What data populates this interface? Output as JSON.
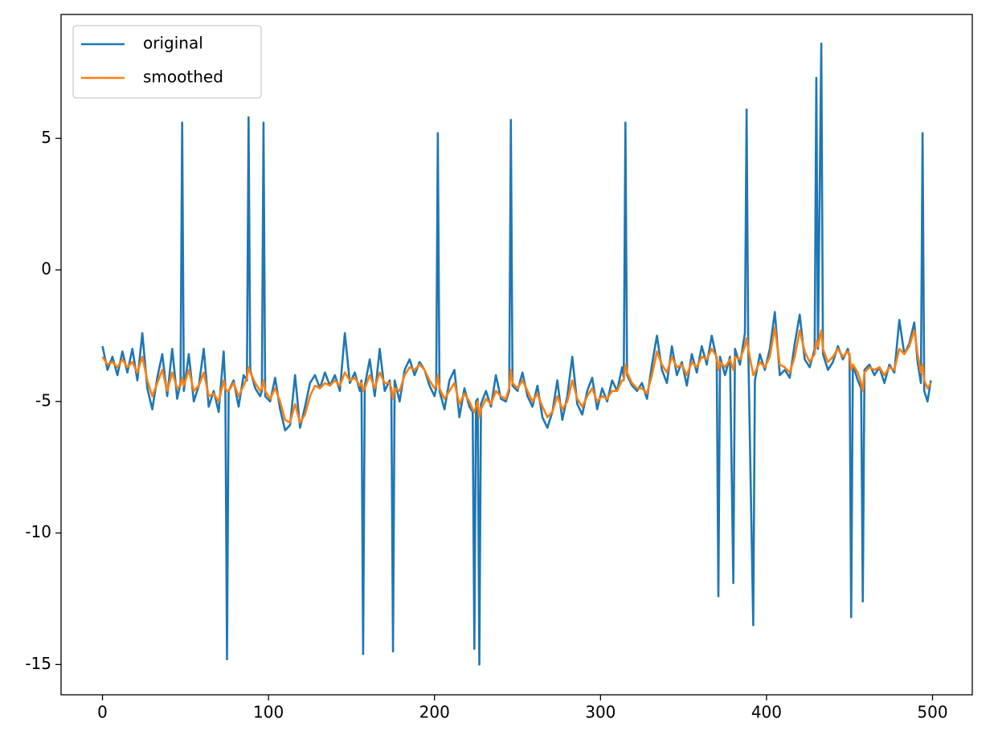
{
  "chart_data": {
    "type": "line",
    "x": [
      0,
      3,
      6,
      9,
      12,
      15,
      18,
      21,
      24,
      27,
      30,
      33,
      36,
      39,
      42,
      45,
      47,
      48,
      49,
      52,
      55,
      58,
      61,
      64,
      67,
      70,
      73,
      74,
      75,
      76,
      79,
      82,
      85,
      87,
      88,
      89,
      92,
      95,
      96,
      97,
      98,
      101,
      104,
      107,
      110,
      113,
      116,
      119,
      122,
      125,
      128,
      131,
      134,
      137,
      140,
      143,
      146,
      149,
      152,
      155,
      156,
      157,
      158,
      161,
      164,
      167,
      170,
      173,
      174,
      175,
      176,
      179,
      182,
      185,
      188,
      191,
      194,
      197,
      200,
      201,
      202,
      203,
      206,
      209,
      212,
      215,
      218,
      221,
      223,
      224,
      225,
      226,
      227,
      228,
      231,
      234,
      237,
      240,
      243,
      245,
      246,
      247,
      250,
      253,
      256,
      259,
      262,
      265,
      268,
      271,
      274,
      277,
      280,
      283,
      286,
      289,
      292,
      295,
      298,
      301,
      304,
      307,
      310,
      313,
      314,
      315,
      316,
      319,
      322,
      325,
      328,
      331,
      334,
      337,
      340,
      343,
      346,
      349,
      352,
      355,
      358,
      361,
      364,
      367,
      370,
      371,
      372,
      375,
      378,
      380,
      381,
      384,
      387,
      388,
      389,
      392,
      393,
      396,
      399,
      402,
      405,
      408,
      411,
      414,
      417,
      420,
      423,
      426,
      429,
      430,
      431,
      433,
      434,
      437,
      440,
      443,
      446,
      449,
      450,
      451,
      452,
      455,
      457,
      458,
      459,
      462,
      465,
      468,
      471,
      474,
      477,
      480,
      483,
      486,
      489,
      491,
      493,
      494,
      495,
      497,
      499
    ],
    "series": [
      {
        "name": "original",
        "color": "#1f77b4",
        "values": [
          -2.9,
          -3.8,
          -3.3,
          -4.0,
          -3.1,
          -3.9,
          -3.0,
          -4.2,
          -2.4,
          -4.5,
          -5.3,
          -4.1,
          -3.2,
          -4.8,
          -3.0,
          -4.9,
          -4.3,
          5.6,
          -4.6,
          -3.2,
          -5.0,
          -4.4,
          -3.0,
          -5.2,
          -4.6,
          -5.4,
          -3.1,
          -4.5,
          -14.8,
          -4.6,
          -4.2,
          -5.2,
          -4.0,
          -4.2,
          5.8,
          -3.8,
          -4.5,
          -4.8,
          -4.6,
          5.6,
          -4.8,
          -5.0,
          -4.1,
          -5.3,
          -6.1,
          -5.9,
          -4.0,
          -6.0,
          -5.2,
          -4.3,
          -4.0,
          -4.5,
          -3.9,
          -4.4,
          -4.0,
          -4.6,
          -2.4,
          -4.3,
          -3.9,
          -4.6,
          -4.2,
          -14.6,
          -4.4,
          -3.4,
          -4.8,
          -3.0,
          -4.6,
          -4.2,
          -4.7,
          -14.5,
          -4.2,
          -5.0,
          -3.8,
          -3.4,
          -4.0,
          -3.5,
          -3.8,
          -4.4,
          -4.8,
          -4.5,
          5.2,
          -4.6,
          -5.3,
          -4.2,
          -3.8,
          -5.6,
          -4.5,
          -5.2,
          -5.4,
          -14.4,
          -5.0,
          -4.9,
          -15.0,
          -5.1,
          -4.6,
          -5.2,
          -4.0,
          -4.9,
          -5.0,
          -4.6,
          5.7,
          -4.4,
          -4.6,
          -3.9,
          -4.8,
          -5.2,
          -4.4,
          -5.6,
          -6.0,
          -5.4,
          -4.2,
          -5.7,
          -4.8,
          -3.3,
          -5.1,
          -5.5,
          -4.6,
          -4.1,
          -5.3,
          -4.5,
          -5.0,
          -4.2,
          -4.6,
          -3.7,
          -4.1,
          5.6,
          -4.0,
          -4.4,
          -4.6,
          -4.3,
          -4.9,
          -3.6,
          -2.5,
          -3.8,
          -4.3,
          -2.9,
          -4.0,
          -3.5,
          -4.4,
          -3.2,
          -3.9,
          -2.9,
          -3.6,
          -2.5,
          -3.4,
          -12.4,
          -3.3,
          -4.0,
          -3.3,
          -11.9,
          -3.0,
          -3.6,
          -2.4,
          6.1,
          -3.0,
          -13.5,
          -4.2,
          -3.2,
          -3.8,
          -3.0,
          -1.6,
          -4.0,
          -3.8,
          -4.1,
          -2.8,
          -1.7,
          -3.4,
          -3.7,
          -3.0,
          7.3,
          -3.0,
          8.6,
          -3.2,
          -3.8,
          -3.5,
          -2.9,
          -3.4,
          -3.0,
          -3.3,
          -13.2,
          -3.6,
          -4.2,
          -4.5,
          -12.6,
          -3.8,
          -3.6,
          -4.0,
          -3.7,
          -4.3,
          -3.6,
          -3.9,
          -1.9,
          -3.2,
          -2.8,
          -2.0,
          -3.5,
          -4.3,
          5.2,
          -4.6,
          -5.0,
          -4.2
        ]
      },
      {
        "name": "smoothed",
        "color": "#ff7f0e",
        "values": [
          -3.3,
          -3.6,
          -3.5,
          -3.7,
          -3.4,
          -3.7,
          -3.5,
          -3.9,
          -3.3,
          -4.2,
          -4.8,
          -4.3,
          -3.8,
          -4.6,
          -3.9,
          -4.5,
          -4.4,
          -4.1,
          -4.4,
          -3.8,
          -4.6,
          -4.4,
          -3.9,
          -4.8,
          -4.7,
          -5.0,
          -4.2,
          -4.5,
          -4.6,
          -4.6,
          -4.3,
          -4.8,
          -4.4,
          -4.1,
          -3.7,
          -3.9,
          -4.3,
          -4.6,
          -4.5,
          -4.2,
          -4.6,
          -4.9,
          -4.5,
          -5.0,
          -5.7,
          -5.8,
          -5.1,
          -5.8,
          -5.5,
          -4.8,
          -4.4,
          -4.5,
          -4.3,
          -4.4,
          -4.2,
          -4.4,
          -3.9,
          -4.2,
          -4.1,
          -4.4,
          -4.3,
          -4.6,
          -4.5,
          -4.0,
          -4.5,
          -3.9,
          -4.3,
          -4.3,
          -4.5,
          -4.9,
          -4.5,
          -4.6,
          -4.0,
          -3.7,
          -3.8,
          -3.6,
          -3.8,
          -4.2,
          -4.5,
          -4.4,
          -4.0,
          -4.5,
          -4.9,
          -4.6,
          -4.3,
          -5.1,
          -4.7,
          -5.0,
          -5.3,
          -5.4,
          -5.2,
          -5.0,
          -5.6,
          -5.3,
          -4.9,
          -5.1,
          -4.6,
          -4.8,
          -4.9,
          -4.5,
          -3.8,
          -4.3,
          -4.5,
          -4.2,
          -4.6,
          -5.0,
          -4.7,
          -5.2,
          -5.6,
          -5.4,
          -4.8,
          -5.3,
          -5.0,
          -4.2,
          -4.9,
          -5.2,
          -4.8,
          -4.5,
          -5.0,
          -4.8,
          -4.9,
          -4.6,
          -4.6,
          -4.2,
          -4.2,
          -3.6,
          -3.9,
          -4.3,
          -4.5,
          -4.5,
          -4.7,
          -4.0,
          -3.1,
          -3.6,
          -3.9,
          -3.3,
          -3.7,
          -3.6,
          -4.0,
          -3.5,
          -3.7,
          -3.3,
          -3.4,
          -3.0,
          -3.3,
          -3.8,
          -3.5,
          -3.7,
          -3.4,
          -3.8,
          -3.3,
          -3.4,
          -2.9,
          -2.6,
          -3.0,
          -4.0,
          -3.9,
          -3.5,
          -3.7,
          -3.3,
          -2.2,
          -3.6,
          -3.7,
          -3.9,
          -3.3,
          -2.3,
          -3.1,
          -3.5,
          -3.2,
          -2.7,
          -2.9,
          -2.3,
          -3.0,
          -3.5,
          -3.3,
          -3.0,
          -3.3,
          -3.1,
          -3.2,
          -3.8,
          -3.6,
          -3.9,
          -4.3,
          -4.6,
          -3.9,
          -3.7,
          -3.8,
          -3.7,
          -4.0,
          -3.7,
          -3.8,
          -3.0,
          -3.2,
          -2.9,
          -2.3,
          -3.2,
          -3.9,
          -3.6,
          -4.2,
          -4.5,
          -4.3
        ]
      }
    ],
    "xlim": [
      -24.95,
      523.95
    ],
    "ylim": [
      -16.15,
      9.71
    ],
    "xticks": [
      0,
      100,
      200,
      300,
      400,
      500
    ],
    "yticks": [
      -15,
      -10,
      -5,
      0,
      5
    ],
    "legend": "upper left"
  }
}
